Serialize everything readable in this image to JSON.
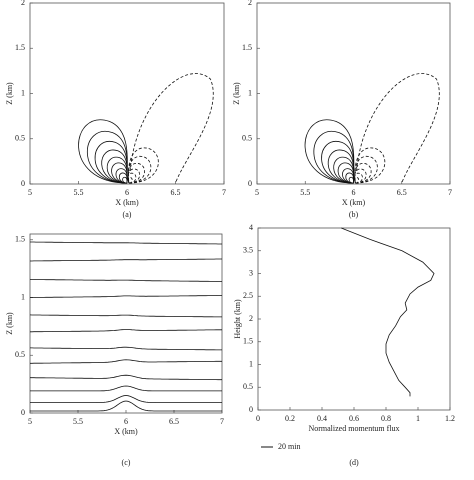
{
  "chart_data": [
    {
      "type": "contour",
      "caption": "(a)",
      "xlabel": "X (km)",
      "ylabel": "Z (km)",
      "xlim": [
        5,
        7
      ],
      "ylim": [
        0,
        2
      ],
      "xticks": [
        5,
        5.5,
        6,
        6.5,
        7
      ],
      "yticks": [
        0,
        0.5,
        1,
        1.5,
        2
      ]
    },
    {
      "type": "contour",
      "caption": "(b)",
      "xlabel": "X (km)",
      "ylabel": "Z (km)",
      "xlim": [
        5,
        7
      ],
      "ylim": [
        0,
        2
      ],
      "xticks": [
        5,
        5.5,
        6,
        6.5,
        7
      ],
      "yticks": [
        0,
        0.5,
        1,
        1.5,
        2
      ]
    },
    {
      "type": "streamline",
      "caption": "(c)",
      "xlabel": "X (km)",
      "ylabel": "Z (km)",
      "xlim": [
        5,
        7
      ],
      "ylim": [
        0,
        1.55
      ],
      "xticks": [
        5,
        5.5,
        6,
        6.5,
        7
      ],
      "yticks": [
        0,
        0.5,
        1,
        1.5
      ]
    },
    {
      "type": "line",
      "caption": "(d)",
      "xlabel": "Normalized momentum flux",
      "ylabel": "Height (km)",
      "xlim": [
        0,
        1.2
      ],
      "ylim": [
        0,
        4
      ],
      "xticks": [
        0,
        0.2,
        0.4,
        0.6,
        0.8,
        1,
        1.2
      ],
      "yticks": [
        0,
        0.5,
        1,
        1.5,
        2,
        2.5,
        3,
        3.5,
        4
      ],
      "series": [
        {
          "name": "20 min",
          "color": "#111111",
          "x": [
            0.52,
            0.7,
            0.9,
            1.03,
            1.1,
            1.08,
            1.0,
            0.95,
            0.92,
            0.93,
            0.89,
            0.86,
            0.82,
            0.8,
            0.8,
            0.82,
            0.85,
            0.88,
            0.92,
            0.95,
            0.95
          ],
          "values": [
            4.0,
            3.75,
            3.5,
            3.25,
            3.0,
            2.85,
            2.7,
            2.55,
            2.35,
            2.2,
            2.05,
            1.85,
            1.65,
            1.45,
            1.25,
            1.05,
            0.85,
            0.65,
            0.5,
            0.38,
            0.3
          ]
        }
      ]
    }
  ]
}
